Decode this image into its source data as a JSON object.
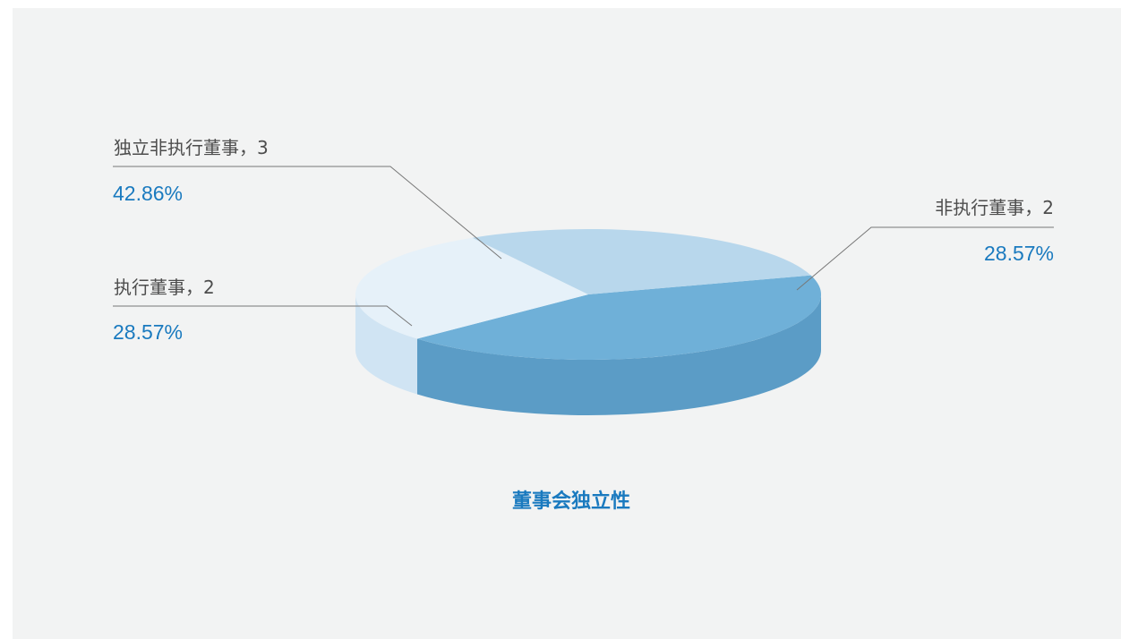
{
  "chart_data": {
    "type": "pie",
    "style": "3d",
    "title": "董事会独立性",
    "slices": [
      {
        "label": "独立非执行董事",
        "value": 3,
        "percent": "42.86%",
        "color": "#6fb0d8",
        "side_color": "#5b9cc6"
      },
      {
        "label": "非执行董事",
        "value": 2,
        "percent": "28.57%",
        "color": "#e6f1f9",
        "side_color": "#d0e4f3"
      },
      {
        "label": "执行董事",
        "value": 2,
        "percent": "28.57%",
        "color": "#b8d7ec",
        "side_color": "#a3c9e4"
      }
    ],
    "label_text": [
      "独立非执行董事，3",
      "非执行董事，2",
      "执行董事，2"
    ]
  },
  "colors": {
    "background": "#f2f3f3",
    "label": "#4d4d4d",
    "percent": "#1a7abf",
    "leader": "#777777"
  }
}
